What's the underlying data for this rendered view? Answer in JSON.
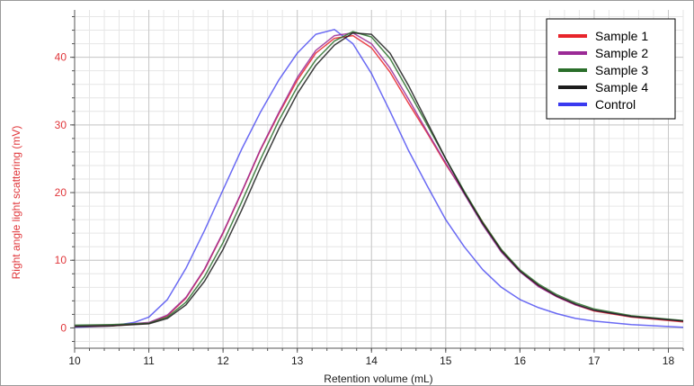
{
  "colors": {
    "sample1": "#e8242b",
    "sample2": "#9b2a96",
    "sample3": "#2a6e2a",
    "sample4": "#1c1c1c",
    "control": "#3a3af0",
    "y_axis_text": "#e0363a",
    "grid_major": "#c8c8c8",
    "grid_minor": "#e6e6e6"
  },
  "chart_data": {
    "type": "line",
    "title": "",
    "xlabel": "Retention volume (mL)",
    "ylabel": "Right angle light scattering (mV)",
    "xlim": [
      10,
      18.2
    ],
    "ylim": [
      -3,
      47
    ],
    "x_ticks": [
      10,
      11,
      12,
      13,
      14,
      15,
      16,
      17,
      18
    ],
    "y_ticks": [
      0,
      10,
      20,
      30,
      40
    ],
    "grid": true,
    "legend_position": "top-right",
    "series": [
      {
        "name": "Sample 1",
        "color": "#e8242b",
        "points": [
          [
            10,
            0.2
          ],
          [
            10.5,
            0.3
          ],
          [
            11,
            0.7
          ],
          [
            11.25,
            1.8
          ],
          [
            11.5,
            4.4
          ],
          [
            11.75,
            8.6
          ],
          [
            12,
            14
          ],
          [
            12.25,
            20
          ],
          [
            12.5,
            26.2
          ],
          [
            12.75,
            31.6
          ],
          [
            13,
            36.6
          ],
          [
            13.25,
            40.6
          ],
          [
            13.5,
            42.8
          ],
          [
            13.75,
            43.2
          ],
          [
            14,
            41.4
          ],
          [
            14.25,
            37.8
          ],
          [
            14.5,
            33.2
          ],
          [
            14.75,
            28.8
          ],
          [
            15,
            24.2
          ],
          [
            15.25,
            20
          ],
          [
            15.5,
            15.6
          ],
          [
            15.75,
            11.5
          ],
          [
            16,
            8.4
          ],
          [
            16.25,
            6.2
          ],
          [
            16.5,
            4.6
          ],
          [
            16.75,
            3.4
          ],
          [
            17,
            2.5
          ],
          [
            17.5,
            1.6
          ],
          [
            18,
            1.1
          ],
          [
            18.2,
            0.9
          ]
        ]
      },
      {
        "name": "Sample 2",
        "color": "#9b2a96",
        "points": [
          [
            10,
            0.3
          ],
          [
            10.5,
            0.4
          ],
          [
            11,
            0.8
          ],
          [
            11.25,
            1.9
          ],
          [
            11.5,
            4.5
          ],
          [
            11.75,
            8.7
          ],
          [
            12,
            14.1
          ],
          [
            12.25,
            20.1
          ],
          [
            12.5,
            26.3
          ],
          [
            12.75,
            31.8
          ],
          [
            13,
            37
          ],
          [
            13.25,
            41
          ],
          [
            13.5,
            43.2
          ],
          [
            13.75,
            43.6
          ],
          [
            14,
            42
          ],
          [
            14.25,
            38.4
          ],
          [
            14.5,
            33.8
          ],
          [
            14.75,
            29
          ],
          [
            15,
            24.4
          ],
          [
            15.25,
            19.8
          ],
          [
            15.5,
            15.2
          ],
          [
            15.75,
            11.2
          ],
          [
            16,
            8.3
          ],
          [
            16.25,
            6.1
          ],
          [
            16.5,
            4.6
          ],
          [
            16.75,
            3.4
          ],
          [
            17,
            2.6
          ],
          [
            17.5,
            1.7
          ],
          [
            18,
            1.2
          ],
          [
            18.2,
            1
          ]
        ]
      },
      {
        "name": "Sample 3",
        "color": "#2a6e2a",
        "points": [
          [
            10,
            0.4
          ],
          [
            10.5,
            0.5
          ],
          [
            11,
            0.7
          ],
          [
            11.25,
            1.6
          ],
          [
            11.5,
            3.8
          ],
          [
            11.75,
            7.6
          ],
          [
            12,
            12.6
          ],
          [
            12.25,
            18.6
          ],
          [
            12.5,
            24.8
          ],
          [
            12.75,
            30.6
          ],
          [
            13,
            35.6
          ],
          [
            13.25,
            39.6
          ],
          [
            13.5,
            42.4
          ],
          [
            13.75,
            43.8
          ],
          [
            14,
            43
          ],
          [
            14.25,
            39.8
          ],
          [
            14.5,
            35
          ],
          [
            14.75,
            30
          ],
          [
            15,
            25
          ],
          [
            15.25,
            20.2
          ],
          [
            15.5,
            15.6
          ],
          [
            15.75,
            11.6
          ],
          [
            16,
            8.6
          ],
          [
            16.25,
            6.5
          ],
          [
            16.5,
            4.9
          ],
          [
            16.75,
            3.7
          ],
          [
            17,
            2.8
          ],
          [
            17.5,
            1.8
          ],
          [
            18,
            1.3
          ],
          [
            18.2,
            1.1
          ]
        ]
      },
      {
        "name": "Sample 4",
        "color": "#1c1c1c",
        "points": [
          [
            10,
            0.2
          ],
          [
            10.5,
            0.3
          ],
          [
            11,
            0.6
          ],
          [
            11.25,
            1.4
          ],
          [
            11.5,
            3.4
          ],
          [
            11.75,
            6.9
          ],
          [
            12,
            11.6
          ],
          [
            12.25,
            17.4
          ],
          [
            12.5,
            23.6
          ],
          [
            12.75,
            29.4
          ],
          [
            13,
            34.6
          ],
          [
            13.25,
            38.8
          ],
          [
            13.5,
            41.8
          ],
          [
            13.75,
            43.6
          ],
          [
            14,
            43.4
          ],
          [
            14.25,
            40.6
          ],
          [
            14.5,
            35.8
          ],
          [
            14.75,
            30.4
          ],
          [
            15,
            25
          ],
          [
            15.25,
            20
          ],
          [
            15.5,
            15.4
          ],
          [
            15.75,
            11.4
          ],
          [
            16,
            8.4
          ],
          [
            16.25,
            6.3
          ],
          [
            16.5,
            4.7
          ],
          [
            16.75,
            3.5
          ],
          [
            17,
            2.6
          ],
          [
            17.5,
            1.7
          ],
          [
            18,
            1.2
          ],
          [
            18.2,
            1
          ]
        ]
      },
      {
        "name": "Control",
        "color": "#3a3af0",
        "points": [
          [
            10,
            0.1
          ],
          [
            10.5,
            0.3
          ],
          [
            10.8,
            0.8
          ],
          [
            11,
            1.6
          ],
          [
            11.25,
            4.2
          ],
          [
            11.5,
            8.8
          ],
          [
            11.75,
            14.4
          ],
          [
            12,
            20.4
          ],
          [
            12.25,
            26.4
          ],
          [
            12.5,
            31.8
          ],
          [
            12.75,
            36.6
          ],
          [
            13,
            40.6
          ],
          [
            13.25,
            43.4
          ],
          [
            13.5,
            44.1
          ],
          [
            13.75,
            42
          ],
          [
            14,
            37.6
          ],
          [
            14.25,
            32
          ],
          [
            14.5,
            26.2
          ],
          [
            14.75,
            21
          ],
          [
            15,
            16
          ],
          [
            15.25,
            12
          ],
          [
            15.5,
            8.6
          ],
          [
            15.75,
            6
          ],
          [
            16,
            4.2
          ],
          [
            16.25,
            3
          ],
          [
            16.5,
            2.1
          ],
          [
            16.75,
            1.4
          ],
          [
            17,
            1
          ],
          [
            17.5,
            0.5
          ],
          [
            18,
            0.2
          ],
          [
            18.2,
            0.1
          ]
        ]
      }
    ]
  }
}
